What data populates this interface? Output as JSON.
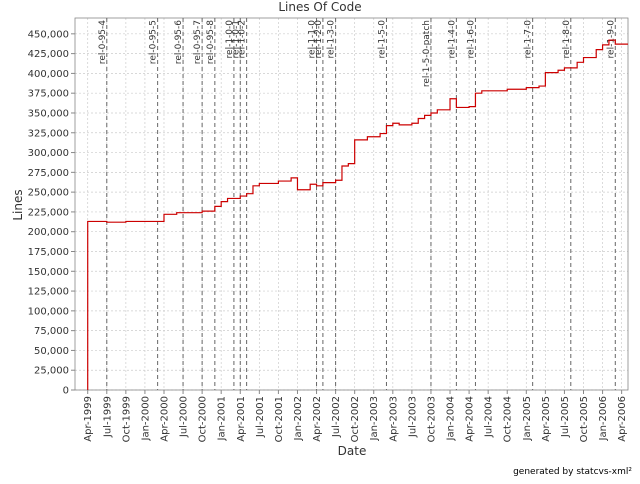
{
  "chart_data": {
    "type": "line",
    "title": "Lines Of Code",
    "x_label": "Date",
    "y_label": "Lines",
    "footer": "generated by statcvs-xml²",
    "step": true,
    "grid": true,
    "xlim": [
      "1999-02",
      "2006-05"
    ],
    "ylim": [
      0,
      470000
    ],
    "yticks": [
      0,
      {
        "value": 25000,
        "label": "25,000"
      },
      {
        "value": 50000,
        "label": "50,000"
      },
      {
        "value": 75000,
        "label": "75,000"
      },
      {
        "value": 100000,
        "label": "100,000"
      },
      {
        "value": 125000,
        "label": "125,000"
      },
      {
        "value": 150000,
        "label": "150,000"
      },
      {
        "value": 175000,
        "label": "175,000"
      },
      {
        "value": 200000,
        "label": "200,000"
      },
      {
        "value": 225000,
        "label": "225,000"
      },
      {
        "value": 250000,
        "label": "250,000"
      },
      {
        "value": 275000,
        "label": "275,000"
      },
      {
        "value": 300000,
        "label": "300,000"
      },
      {
        "value": 325000,
        "label": "325,000"
      },
      {
        "value": 350000,
        "label": "350,000"
      },
      {
        "value": 375000,
        "label": "375,000"
      },
      {
        "value": 400000,
        "label": "400,000"
      },
      {
        "value": 425000,
        "label": "425,000"
      },
      {
        "value": 450000,
        "label": "450,000"
      }
    ],
    "xticks": [
      {
        "value": "1999-04",
        "label": "Apr-1999"
      },
      {
        "value": "1999-07",
        "label": "Jul-1999"
      },
      {
        "value": "1999-10",
        "label": "Oct-1999"
      },
      {
        "value": "2000-01",
        "label": "Jan-2000"
      },
      {
        "value": "2000-04",
        "label": "Apr-2000"
      },
      {
        "value": "2000-07",
        "label": "Jul-2000"
      },
      {
        "value": "2000-10",
        "label": "Oct-2000"
      },
      {
        "value": "2001-01",
        "label": "Jan-2001"
      },
      {
        "value": "2001-04",
        "label": "Apr-2001"
      },
      {
        "value": "2001-07",
        "label": "Jul-2001"
      },
      {
        "value": "2001-10",
        "label": "Oct-2001"
      },
      {
        "value": "2002-01",
        "label": "Jan-2002"
      },
      {
        "value": "2002-04",
        "label": "Apr-2002"
      },
      {
        "value": "2002-07",
        "label": "Jul-2002"
      },
      {
        "value": "2002-10",
        "label": "Oct-2002"
      },
      {
        "value": "2003-01",
        "label": "Jan-2003"
      },
      {
        "value": "2003-04",
        "label": "Apr-2003"
      },
      {
        "value": "2003-07",
        "label": "Jul-2003"
      },
      {
        "value": "2003-10",
        "label": "Oct-2003"
      },
      {
        "value": "2004-01",
        "label": "Jan-2004"
      },
      {
        "value": "2004-04",
        "label": "Apr-2004"
      },
      {
        "value": "2004-07",
        "label": "Jul-2004"
      },
      {
        "value": "2004-10",
        "label": "Oct-2004"
      },
      {
        "value": "2005-01",
        "label": "Jan-2005"
      },
      {
        "value": "2005-04",
        "label": "Apr-2005"
      },
      {
        "value": "2005-07",
        "label": "Jul-2005"
      },
      {
        "value": "2005-10",
        "label": "Oct-2005"
      },
      {
        "value": "2006-01",
        "label": "Jan-2006"
      },
      {
        "value": "2006-04",
        "label": "Apr-2006"
      }
    ],
    "series": [
      {
        "color": "#cc0000",
        "x": [
          "1999-04",
          "1999-04",
          "1999-07",
          "1999-10",
          "2000-04",
          "2000-06",
          "2000-10",
          "2000-12",
          "2001-01",
          "2001-02",
          "2001-04",
          "2001-05",
          "2001-06",
          "2001-07",
          "2001-10",
          "2001-12",
          "2002-01",
          "2002-03",
          "2002-04",
          "2002-05",
          "2002-07",
          "2002-08",
          "2002-09",
          "2002-10",
          "2002-12",
          "2003-02",
          "2003-03",
          "2003-04",
          "2003-05",
          "2003-07",
          "2003-08",
          "2003-09",
          "2003-10",
          "2003-11",
          "2004-01",
          "2004-02",
          "2004-04",
          "2004-05",
          "2004-06",
          "2004-10",
          "2005-01",
          "2005-03",
          "2005-04",
          "2005-06",
          "2005-07",
          "2005-09",
          "2005-10",
          "2005-12",
          "2006-01",
          "2006-02",
          "2006-03"
        ],
        "values": [
          0,
          213000,
          212000,
          213000,
          222000,
          224000,
          226000,
          232000,
          238000,
          242000,
          245000,
          248000,
          258000,
          261000,
          264000,
          268000,
          253000,
          260000,
          258000,
          262000,
          265000,
          283000,
          286000,
          316000,
          320000,
          324000,
          334000,
          337000,
          335000,
          337000,
          343000,
          347000,
          350000,
          354000,
          368000,
          357000,
          358000,
          375000,
          378000,
          380000,
          382000,
          384000,
          401000,
          404000,
          407000,
          414000,
          420000,
          430000,
          436000,
          442000,
          437000
        ]
      }
    ],
    "releases": [
      {
        "name": "rel-0-95-4",
        "x": "1999-07"
      },
      {
        "name": "rel-0-95-5",
        "x": "2000-03"
      },
      {
        "name": "rel-0-95-6",
        "x": "2000-07"
      },
      {
        "name": "rel-0-95-7",
        "x": "2000-10"
      },
      {
        "name": "rel-0-95-8",
        "x": "2000-12"
      },
      {
        "name": "rel-1-0-0",
        "x": "2001-03"
      },
      {
        "name": "rel-1-0-1",
        "x": "2001-04"
      },
      {
        "name": "rel-1-0-2",
        "x": "2001-05"
      },
      {
        "name": "rel-1-1-0",
        "x": "2002-04"
      },
      {
        "name": "rel-1-2-0",
        "x": "2002-05"
      },
      {
        "name": "rel-1-3-0",
        "x": "2002-07"
      },
      {
        "name": "rel-1-5-0",
        "x": "2003-03"
      },
      {
        "name": "rel-1-5-0-patch",
        "x": "2003-10"
      },
      {
        "name": "rel-1-4-0",
        "x": "2004-02"
      },
      {
        "name": "rel-1-6-0",
        "x": "2004-05"
      },
      {
        "name": "rel-1-7-0",
        "x": "2005-02"
      },
      {
        "name": "rel-1-8-0",
        "x": "2005-08"
      },
      {
        "name": "rel-1-9-0",
        "x": "2006-03"
      }
    ]
  }
}
